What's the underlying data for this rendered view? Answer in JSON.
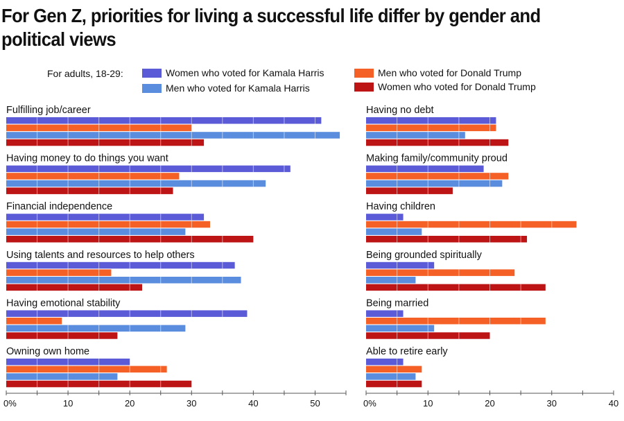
{
  "title": "For Gen Z, priorities for living a successful life differ by gender and political views",
  "legend": {
    "prefix": "For adults, 18-29:",
    "items": [
      {
        "label": "Women who voted for Kamala Harris",
        "color": "#5b5bd8"
      },
      {
        "label": "Men who voted for Kamala Harris",
        "color": "#5b8dde"
      },
      {
        "label": "Men who voted for Donald Trump",
        "color": "#f46026"
      },
      {
        "label": "Women who voted for Donald Trump",
        "color": "#bd1516"
      }
    ]
  },
  "chart_data": [
    {
      "type": "bar",
      "orientation": "horizontal",
      "panel": "left",
      "xlabel": "",
      "ylabel": "",
      "xlim": [
        0,
        55
      ],
      "ticks": [
        "0%",
        "10",
        "20",
        "30",
        "40",
        "50"
      ],
      "tick_values": [
        0,
        10,
        20,
        30,
        40,
        50
      ],
      "minor_tick_step": 5,
      "categories": [
        "Fulfilling job/career",
        "Having money to do things you want",
        "Financial independence",
        "Using talents and resources to help others",
        "Having emotional stability",
        "Owning own home"
      ],
      "series": [
        {
          "name": "Women who voted for Kamala Harris",
          "color": "#5b5bd8",
          "values": [
            51,
            46,
            32,
            37,
            39,
            20
          ]
        },
        {
          "name": "Men who voted for Donald Trump",
          "color": "#f46026",
          "values": [
            30,
            28,
            33,
            17,
            9,
            26
          ]
        },
        {
          "name": "Men who voted for Kamala Harris",
          "color": "#5b8dde",
          "values": [
            54,
            42,
            29,
            38,
            29,
            18
          ]
        },
        {
          "name": "Women who voted for Donald Trump",
          "color": "#bd1516",
          "values": [
            32,
            27,
            40,
            22,
            18,
            30
          ]
        }
      ]
    },
    {
      "type": "bar",
      "orientation": "horizontal",
      "panel": "right",
      "xlabel": "",
      "ylabel": "",
      "xlim": [
        0,
        40
      ],
      "ticks": [
        "0%",
        "10",
        "20",
        "30",
        "40"
      ],
      "tick_values": [
        0,
        10,
        20,
        30,
        40
      ],
      "minor_tick_step": 5,
      "categories": [
        "Having no debt",
        "Making family/community proud",
        "Having children",
        "Being grounded spiritually",
        "Being married",
        "Able to retire early"
      ],
      "series": [
        {
          "name": "Women who voted for Kamala Harris",
          "color": "#5b5bd8",
          "values": [
            21,
            19,
            6,
            11,
            6,
            6
          ]
        },
        {
          "name": "Men who voted for Donald Trump",
          "color": "#f46026",
          "values": [
            21,
            23,
            34,
            24,
            29,
            9
          ]
        },
        {
          "name": "Men who voted for Kamala Harris",
          "color": "#5b8dde",
          "values": [
            16,
            22,
            9,
            8,
            11,
            8
          ]
        },
        {
          "name": "Women who voted for Donald Trump",
          "color": "#bd1516",
          "values": [
            23,
            14,
            26,
            29,
            20,
            9
          ]
        }
      ]
    }
  ]
}
